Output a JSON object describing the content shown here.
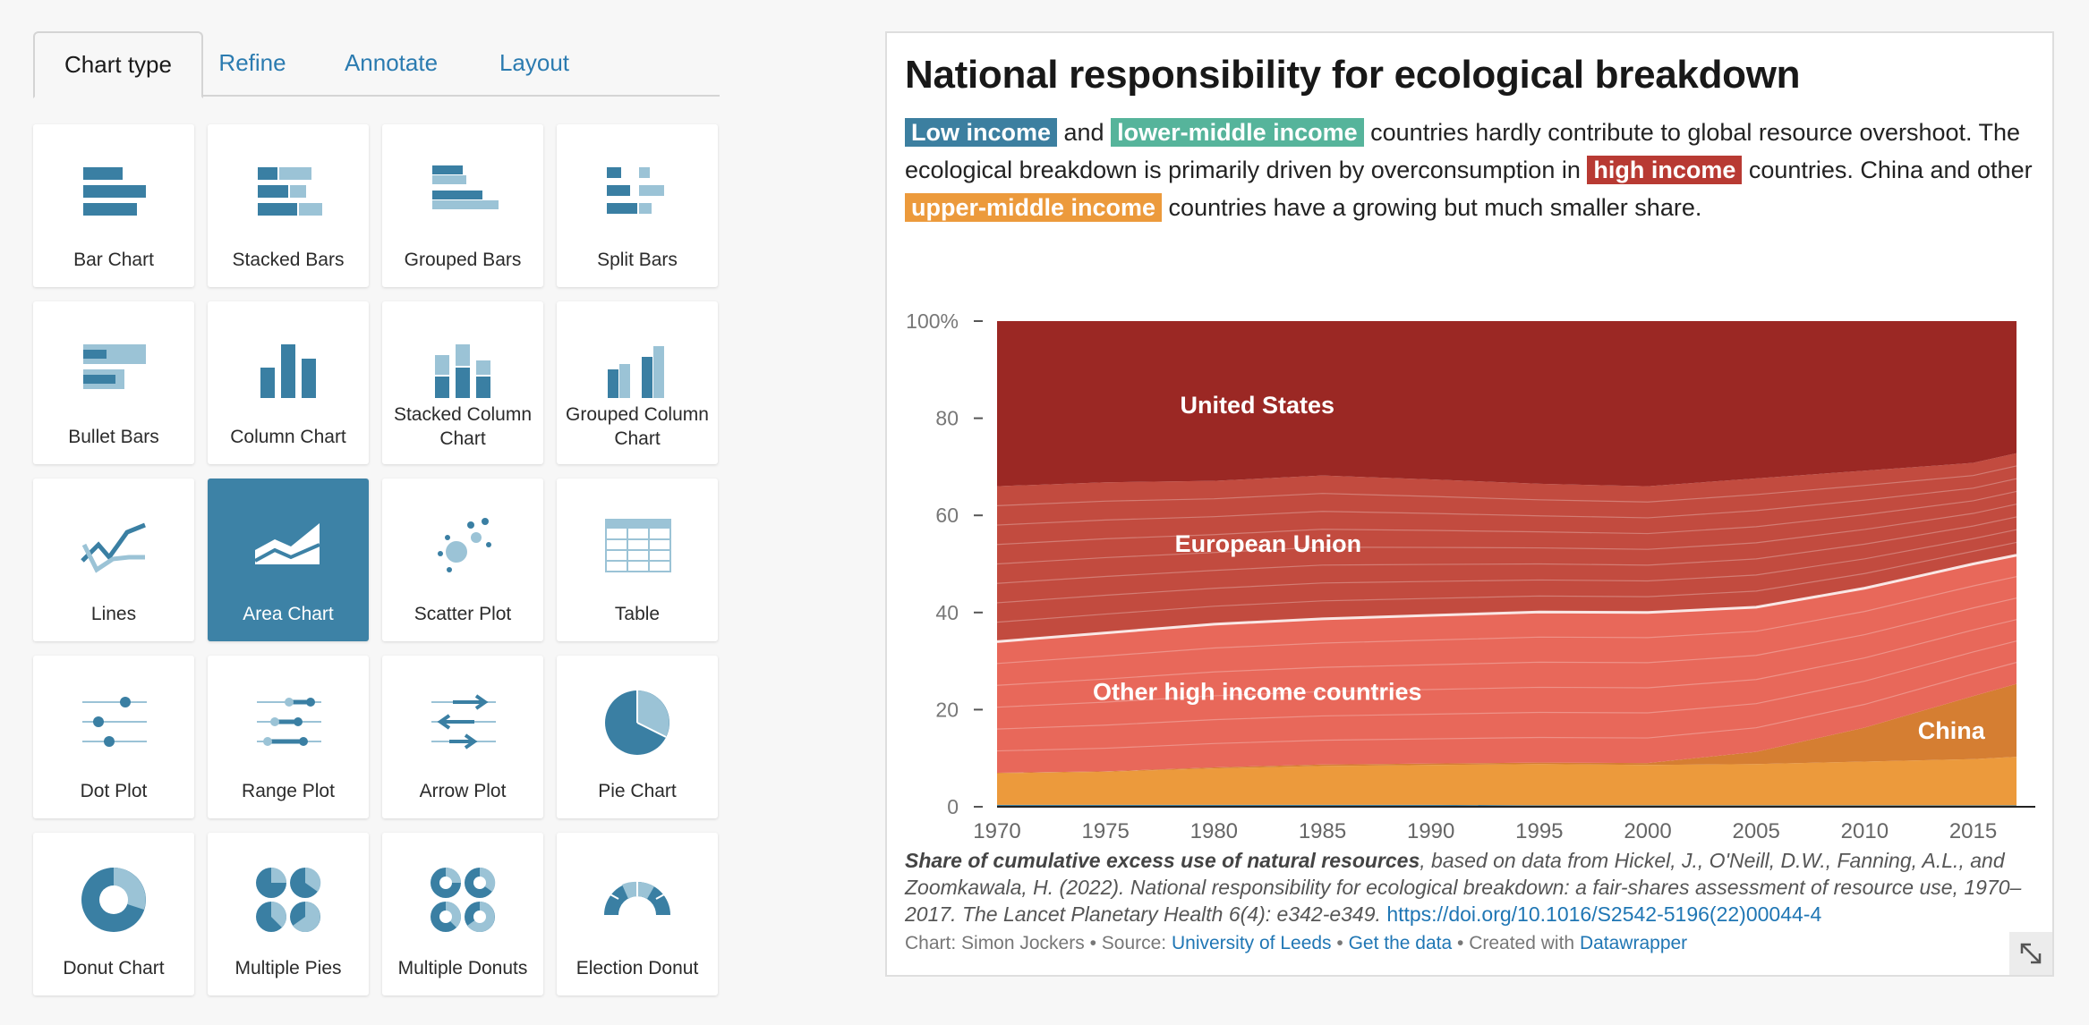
{
  "tabs": [
    {
      "label": "Chart type",
      "active": true
    },
    {
      "label": "Refine",
      "active": false
    },
    {
      "label": "Annotate",
      "active": false
    },
    {
      "label": "Layout",
      "active": false
    }
  ],
  "chart_types": [
    {
      "label": "Bar Chart",
      "icon": "bar-chart-icon"
    },
    {
      "label": "Stacked Bars",
      "icon": "stacked-bars-icon"
    },
    {
      "label": "Grouped Bars",
      "icon": "grouped-bars-icon"
    },
    {
      "label": "Split Bars",
      "icon": "split-bars-icon"
    },
    {
      "label": "Bullet Bars",
      "icon": "bullet-bars-icon"
    },
    {
      "label": "Column Chart",
      "icon": "column-chart-icon"
    },
    {
      "label": "Stacked Column Chart",
      "icon": "stacked-column-chart-icon"
    },
    {
      "label": "Grouped Column Chart",
      "icon": "grouped-column-chart-icon"
    },
    {
      "label": "Lines",
      "icon": "lines-icon"
    },
    {
      "label": "Area Chart",
      "icon": "area-chart-icon",
      "selected": true
    },
    {
      "label": "Scatter Plot",
      "icon": "scatter-plot-icon"
    },
    {
      "label": "Table",
      "icon": "table-icon"
    },
    {
      "label": "Dot Plot",
      "icon": "dot-plot-icon"
    },
    {
      "label": "Range Plot",
      "icon": "range-plot-icon"
    },
    {
      "label": "Arrow Plot",
      "icon": "arrow-plot-icon"
    },
    {
      "label": "Pie Chart",
      "icon": "pie-chart-icon"
    },
    {
      "label": "Donut Chart",
      "icon": "donut-chart-icon"
    },
    {
      "label": "Multiple Pies",
      "icon": "multiple-pies-icon"
    },
    {
      "label": "Multiple Donuts",
      "icon": "multiple-donuts-icon"
    },
    {
      "label": "Election Donut",
      "icon": "election-donut-icon"
    }
  ],
  "preview": {
    "title": "National responsibility for ecological breakdown",
    "intro": {
      "low": "Low income",
      "and": " and ",
      "lower_middle": "lower-middle income",
      "text1": " countries hardly contribute to global resource overshoot. The ecological breakdown is primarily driven by overconsumption in ",
      "high": "high income",
      "text2": " countries. China and other ",
      "upper_middle": "upper-middle income",
      "text3": " countries have a growing but much smaller share."
    },
    "notes": {
      "bold": "Share of cumulative excess use of natural resources",
      "text": ", based on data from Hickel, J., O'Neill, D.W., Fanning, A.L., and Zoomkawala, H. (2022). National responsibility for ecological breakdown: a fair-shares assessment of resource use, 1970–2017. The Lancet Planetary Health 6(4): e342-e349. ",
      "link": "https://doi.org/10.1016/S2542-5196(22)00044-4"
    },
    "byline": {
      "chart_by": "Chart: Simon Jockers",
      "sep1": " • Source: ",
      "source": "University of Leeds",
      "sep2": " • ",
      "get_data": "Get the data",
      "sep3": " • Created with ",
      "created_with": "Datawrapper"
    }
  },
  "colors": {
    "accent": "#3d82a6",
    "link": "#1f76b4",
    "low_income": "#3c7fa0",
    "lower_middle_income": "#56b49b",
    "high_income": "#b83a33",
    "upper_middle_income": "#ec9a3c"
  },
  "chart_data": {
    "type": "area",
    "stacked": true,
    "x": [
      1970,
      1975,
      1980,
      1985,
      1990,
      1995,
      2000,
      2005,
      2010,
      2015,
      2017
    ],
    "ylim": [
      0,
      100
    ],
    "yticks": [
      0,
      20,
      40,
      60,
      80,
      100
    ],
    "ytick_labels": [
      "0",
      "20",
      "40",
      "60",
      "80",
      "100%"
    ],
    "xticks": [
      1970,
      1975,
      1980,
      1985,
      1990,
      1995,
      2000,
      2005,
      2010,
      2015
    ],
    "series": [
      {
        "name": "",
        "color": "#3c7fa0",
        "values": [
          0.4,
          0.4,
          0.4,
          0.4,
          0.4,
          0.3,
          0.3,
          0.3,
          0.3,
          0.3,
          0.3
        ]
      },
      {
        "name": "",
        "color": "#ec9a3c",
        "values": [
          6.5,
          6.8,
          7.5,
          8,
          8.2,
          8.5,
          8.3,
          8.5,
          9,
          9.5,
          10
        ]
      },
      {
        "name": "China",
        "color": "#d57e32",
        "values": [
          0.1,
          0.1,
          0.2,
          0.3,
          0.3,
          0.3,
          0.4,
          2.5,
          7,
          13,
          15
        ]
      },
      {
        "name": "Other high income countries",
        "color": "#e8685a",
        "values": [
          27,
          28.5,
          29.5,
          30,
          30.5,
          31,
          31,
          29.8,
          28.7,
          27.2,
          26.5
        ]
      },
      {
        "name": "European Union",
        "color": "#c24b3f",
        "values": [
          32,
          31,
          29.5,
          29.5,
          28,
          26.4,
          26,
          26.5,
          24.2,
          20.8,
          21
        ]
      },
      {
        "name": "United States",
        "color": "#9b2824",
        "values": [
          34,
          33.2,
          32.9,
          31.8,
          32.6,
          33.5,
          34,
          32.4,
          30.8,
          29.2,
          27.2
        ]
      }
    ],
    "annotations": [
      {
        "text": "United States",
        "x": 1982,
        "y": 81
      },
      {
        "text": "European Union",
        "x": 1982.5,
        "y": 52.5
      },
      {
        "text": "Other high income countries",
        "x": 1982,
        "y": 22
      },
      {
        "text": "China",
        "x": 2014,
        "y": 14
      }
    ]
  }
}
